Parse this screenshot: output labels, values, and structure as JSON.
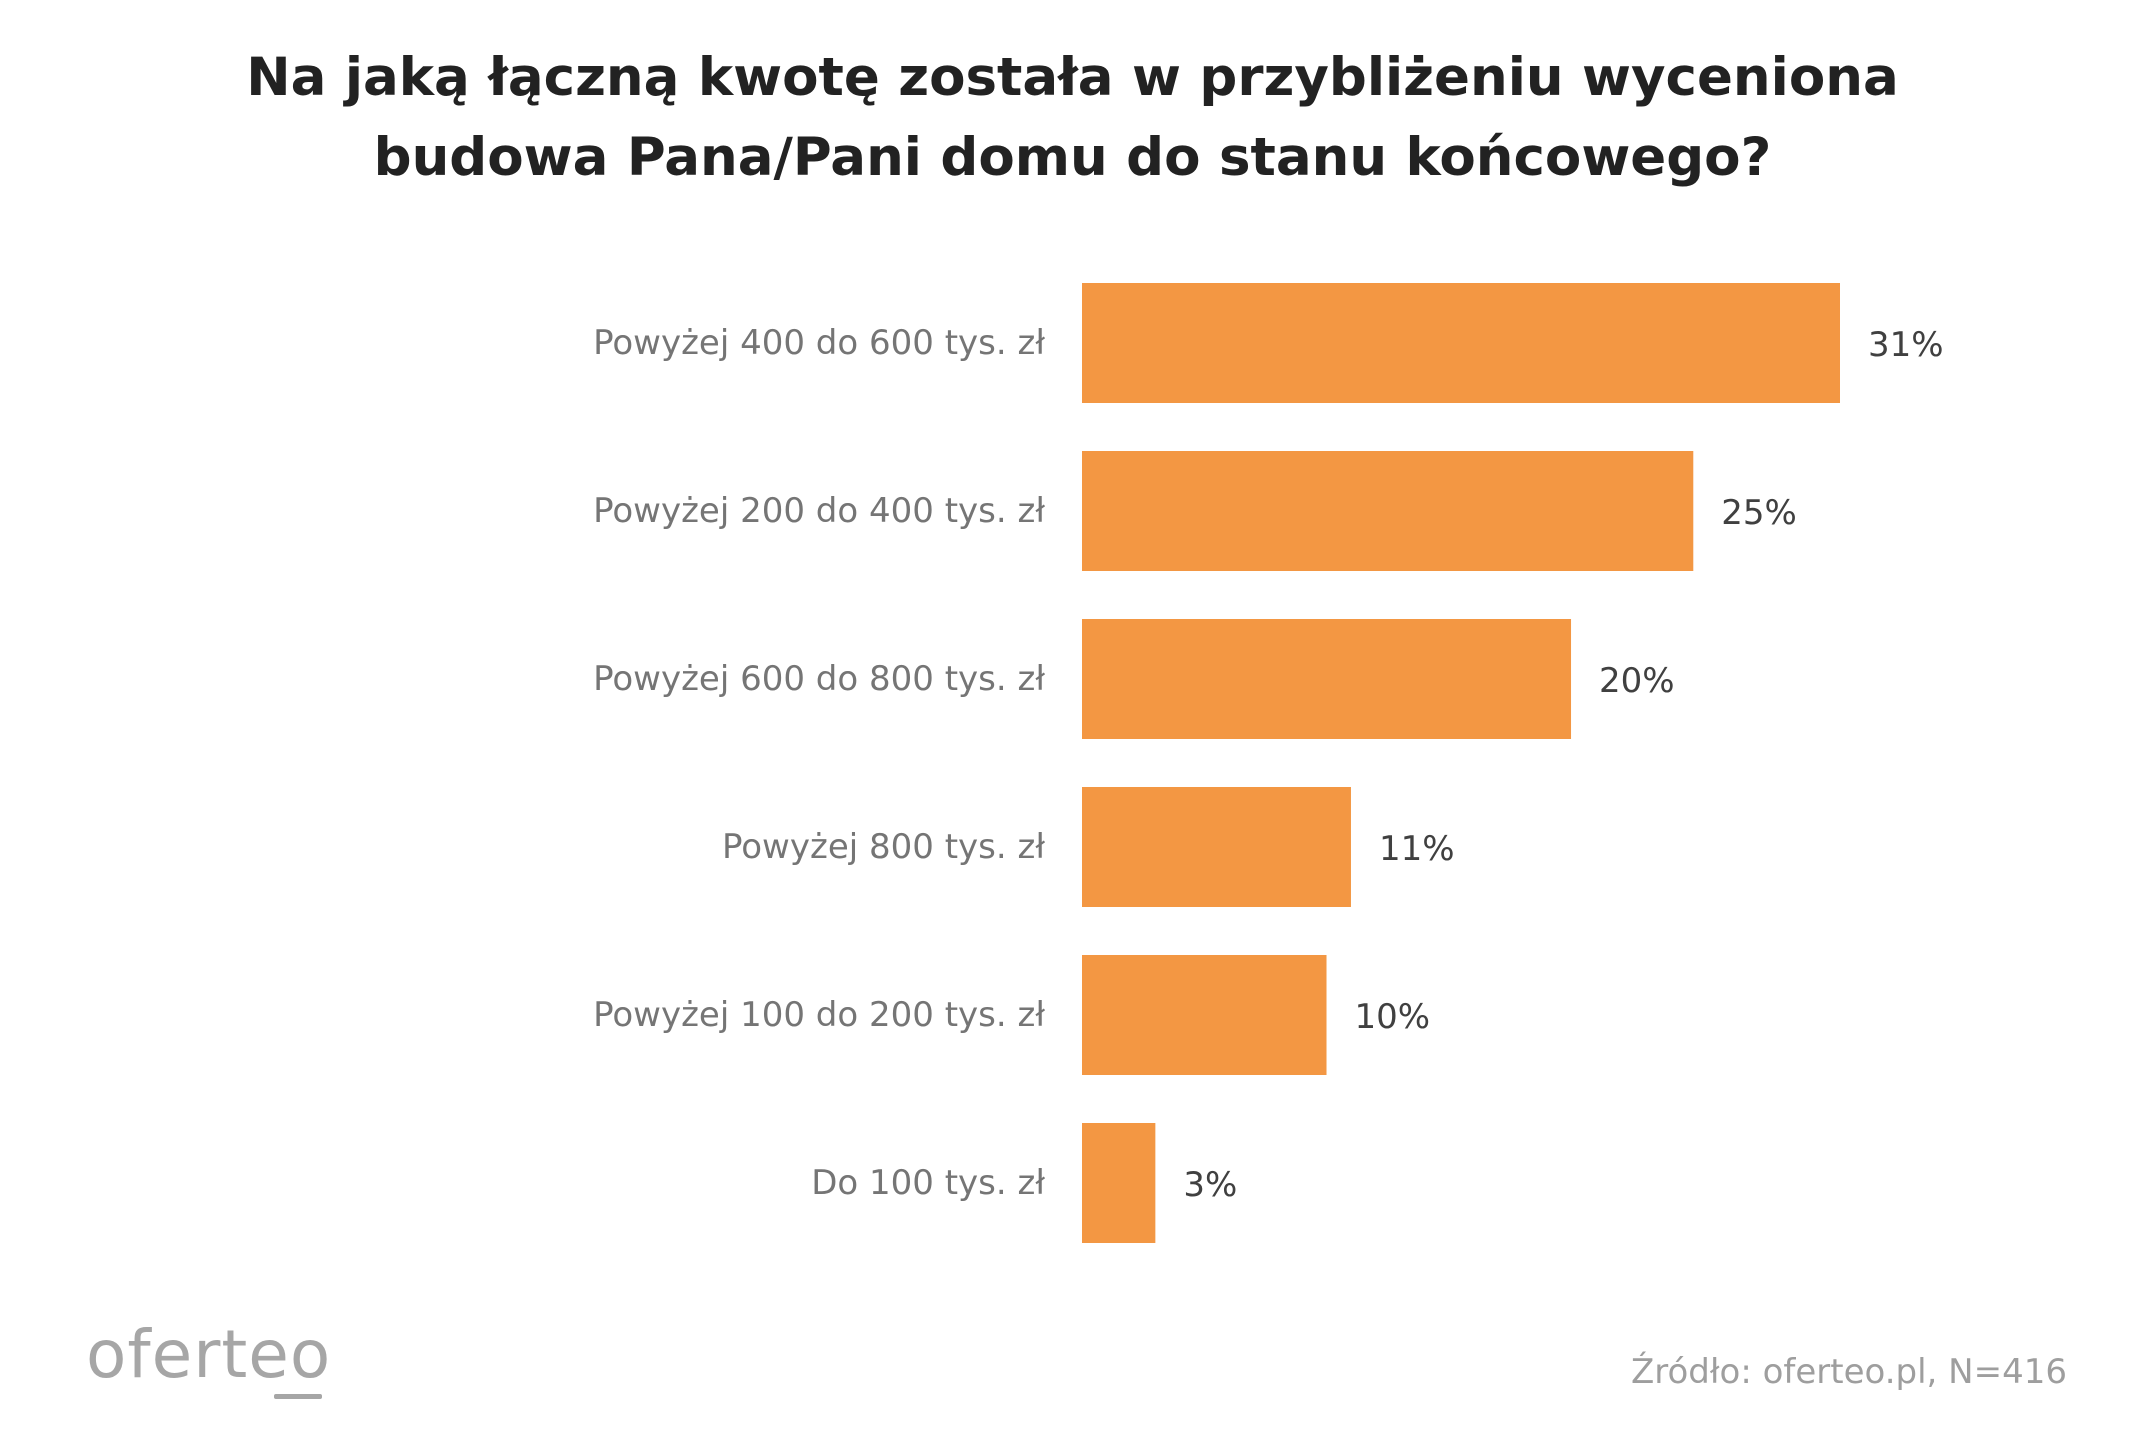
{
  "title_lines": [
    "Na jaką łączną kwotę została w przybliżeniu wyceniona",
    "budowa Pana/Pani domu do stanu końcowego?"
  ],
  "footer": {
    "logo_text": "oferteo",
    "source": "Źródło: oferteo.pl, N=416"
  },
  "colors": {
    "bar": "#F39743",
    "category_label": "#757575",
    "value_label": "#404040"
  },
  "chart_data": {
    "type": "bar",
    "orientation": "horizontal",
    "title": "Na jaką łączną kwotę została w przybliżeniu wyceniona budowa Pana/Pani domu do stanu końcowego?",
    "categories": [
      "Powyżej 400 do 600 tys. zł",
      "Powyżej 200 do 400 tys. zł",
      "Powyżej 600 do 800 tys. zł",
      "Powyżej 800 tys. zł",
      "Powyżej 100 do 200 tys. zł",
      "Do 100 tys. zł"
    ],
    "values": [
      31,
      25,
      20,
      11,
      10,
      3
    ],
    "value_labels": [
      "31%",
      "25%",
      "20%",
      "11%",
      "10%",
      "3%"
    ],
    "unit": "%",
    "xlim": [
      0,
      31
    ],
    "grid": false,
    "legend": "none"
  }
}
